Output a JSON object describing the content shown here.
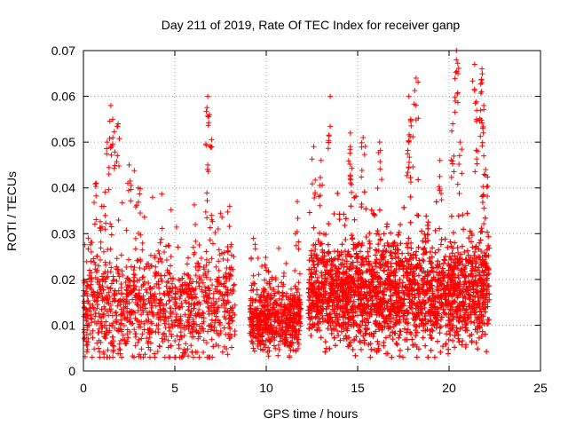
{
  "chart_data": {
    "type": "scatter",
    "title": "Day 211 of 2019, Rate Of TEC Index for receiver ganp",
    "xlabel": "GPS time / hours",
    "ylabel": "ROTI / TECUs",
    "xlim": [
      0,
      25
    ],
    "ylim": [
      0,
      0.07
    ],
    "xticks": [
      "0",
      "5",
      "10",
      "15",
      "20",
      "25"
    ],
    "yticks": [
      "0",
      "0.01",
      "0.02",
      "0.03",
      "0.04",
      "0.05",
      "0.06",
      "0.07"
    ],
    "grid": true,
    "marker": "+",
    "color": "#ff0000",
    "segments": [
      {
        "start": 0.0,
        "end": 8.3,
        "base": 0.014,
        "spread": 0.008,
        "count": 1100
      },
      {
        "start": 9.1,
        "end": 11.9,
        "base": 0.011,
        "spread": 0.005,
        "count": 600
      },
      {
        "start": 12.3,
        "end": 22.2,
        "base": 0.017,
        "spread": 0.008,
        "count": 4200
      }
    ],
    "peaks": [
      {
        "x": 0.7,
        "y": 0.041
      },
      {
        "x": 1.0,
        "y": 0.036
      },
      {
        "x": 1.3,
        "y": 0.05
      },
      {
        "x": 1.5,
        "y": 0.058
      },
      {
        "x": 1.6,
        "y": 0.055
      },
      {
        "x": 1.9,
        "y": 0.054
      },
      {
        "x": 2.5,
        "y": 0.045
      },
      {
        "x": 3.0,
        "y": 0.04
      },
      {
        "x": 4.2,
        "y": 0.028
      },
      {
        "x": 6.8,
        "y": 0.06
      },
      {
        "x": 6.9,
        "y": 0.056
      },
      {
        "x": 6.8,
        "y": 0.045
      },
      {
        "x": 7.0,
        "y": 0.034
      },
      {
        "x": 8.0,
        "y": 0.036
      },
      {
        "x": 9.3,
        "y": 0.029
      },
      {
        "x": 10.0,
        "y": 0.022
      },
      {
        "x": 11.7,
        "y": 0.037
      },
      {
        "x": 12.6,
        "y": 0.049
      },
      {
        "x": 13.0,
        "y": 0.046
      },
      {
        "x": 13.5,
        "y": 0.06
      },
      {
        "x": 14.6,
        "y": 0.052
      },
      {
        "x": 14.6,
        "y": 0.049
      },
      {
        "x": 15.3,
        "y": 0.051
      },
      {
        "x": 16.2,
        "y": 0.05
      },
      {
        "x": 17.8,
        "y": 0.06
      },
      {
        "x": 17.9,
        "y": 0.055
      },
      {
        "x": 17.8,
        "y": 0.05
      },
      {
        "x": 18.2,
        "y": 0.064
      },
      {
        "x": 19.5,
        "y": 0.046
      },
      {
        "x": 20.2,
        "y": 0.054
      },
      {
        "x": 20.4,
        "y": 0.07
      },
      {
        "x": 20.4,
        "y": 0.068
      },
      {
        "x": 20.6,
        "y": 0.05
      },
      {
        "x": 21.4,
        "y": 0.067
      },
      {
        "x": 21.5,
        "y": 0.055
      },
      {
        "x": 21.8,
        "y": 0.066
      },
      {
        "x": 21.8,
        "y": 0.063
      },
      {
        "x": 21.9,
        "y": 0.058
      },
      {
        "x": 21.9,
        "y": 0.047
      },
      {
        "x": 22.0,
        "y": 0.044
      }
    ]
  }
}
